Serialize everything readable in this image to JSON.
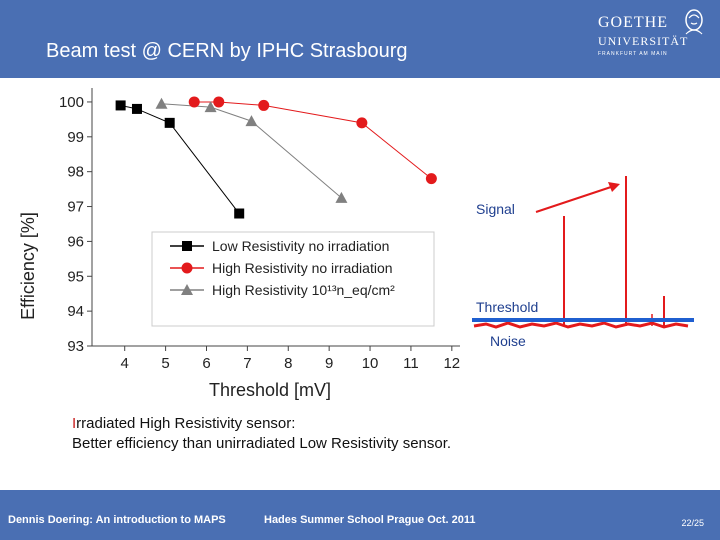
{
  "slide": {
    "title": "Beam test @ CERN by IPHC Strasbourg",
    "logo": {
      "line1": "GOETHE",
      "line2": "UNIVERSITÄT",
      "line3": "FRANKFURT AM MAIN",
      "icon": "goethe-portrait-icon"
    },
    "note_first": "I",
    "note_rest": "rradiated High Resistivity sensor:",
    "note_line2": "Better efficiency than unirradiated Low Resistivity sensor.",
    "footer_left": "Dennis Doering: An introduction to MAPS",
    "footer_center": "Hades Summer School Prague Oct. 2011",
    "page_number": "22/25",
    "colors": {
      "header": "#4a6fb3",
      "red": "#e31a1c",
      "gray": "#808080",
      "black": "#000000"
    }
  },
  "inset": {
    "signal_label": "Signal",
    "threshold_label": "Threshold",
    "noise_label": "Noise",
    "colors": {
      "signal": "#e31a1c",
      "threshold": "#1f5fd0"
    }
  },
  "chart_data": {
    "type": "scatter",
    "xlabel": "Threshold [mV]",
    "ylabel": "Efficiency [%]",
    "xlim": [
      3.2,
      12.2
    ],
    "ylim": [
      93,
      100.4
    ],
    "xticks": [
      4,
      5,
      6,
      7,
      8,
      9,
      10,
      11,
      12
    ],
    "yticks": [
      93,
      94,
      95,
      96,
      97,
      98,
      99,
      100
    ],
    "legend_placement": "center",
    "series": [
      {
        "name": "Low Resistivity no irradiation",
        "color": "#000000",
        "marker": "square",
        "x": [
          3.9,
          4.3,
          5.1,
          6.8
        ],
        "y": [
          99.9,
          99.8,
          99.4,
          96.8
        ]
      },
      {
        "name": "High Resistivity no irradiation",
        "color": "#e31a1c",
        "marker": "circle",
        "x": [
          5.7,
          6.3,
          7.4,
          9.8,
          11.5
        ],
        "y": [
          100.0,
          100.0,
          99.9,
          99.4,
          97.8
        ]
      },
      {
        "name": "High Resistivity 10¹³n_eq/cm²",
        "color": "#808080",
        "marker": "triangle",
        "x": [
          4.9,
          6.1,
          7.1,
          9.3
        ],
        "y": [
          99.95,
          99.85,
          99.45,
          97.25
        ]
      }
    ]
  }
}
